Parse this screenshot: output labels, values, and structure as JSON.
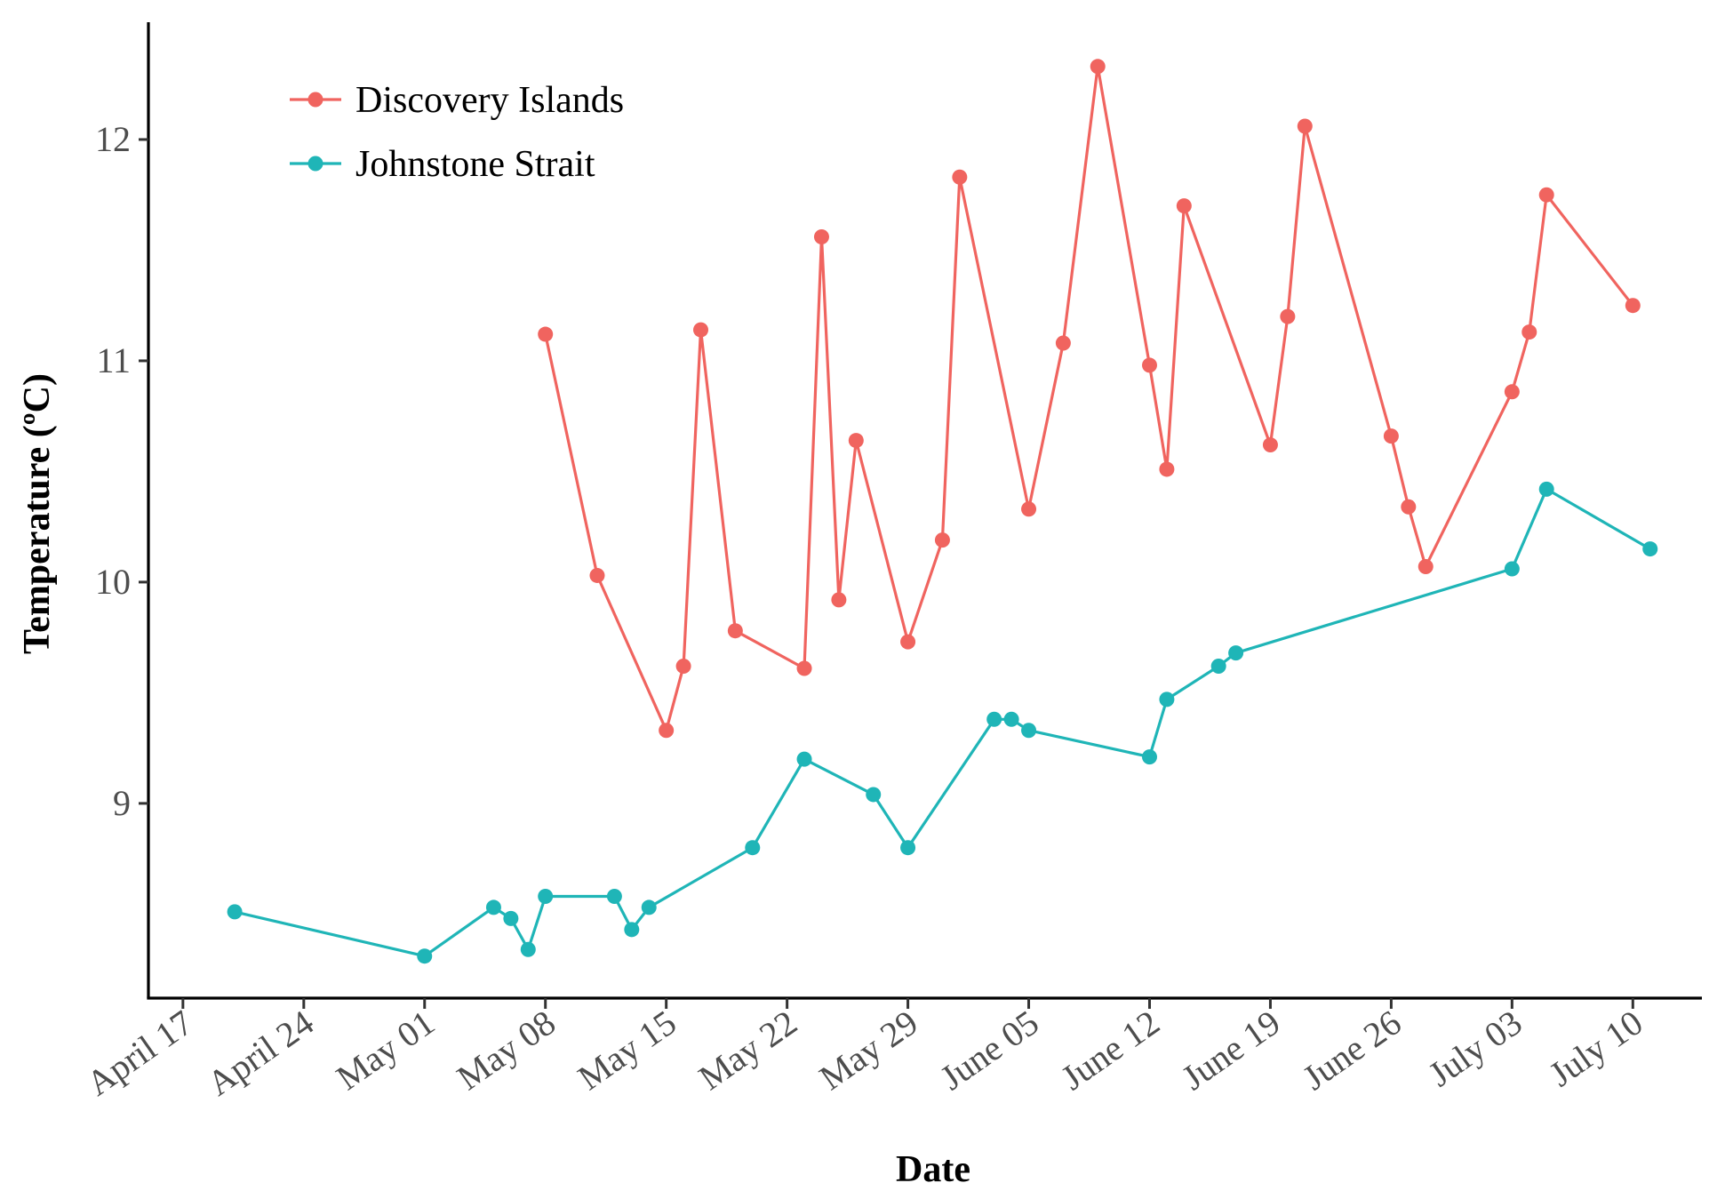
{
  "chart_data": {
    "type": "line",
    "title": "",
    "xlabel": "Date",
    "ylabel": "Temperature (ºC)",
    "x_type": "date",
    "xlim": [
      "2020-04-15",
      "2020-07-14"
    ],
    "ylim": [
      8.12,
      12.53
    ],
    "grid": false,
    "legend_position": "top-left",
    "x_ticks": [
      {
        "date": "2020-04-17",
        "label": "April 17"
      },
      {
        "date": "2020-04-24",
        "label": "April 24"
      },
      {
        "date": "2020-05-01",
        "label": "May 01"
      },
      {
        "date": "2020-05-08",
        "label": "May 08"
      },
      {
        "date": "2020-05-15",
        "label": "May 15"
      },
      {
        "date": "2020-05-22",
        "label": "May 22"
      },
      {
        "date": "2020-05-29",
        "label": "May 29"
      },
      {
        "date": "2020-06-05",
        "label": "June 05"
      },
      {
        "date": "2020-06-12",
        "label": "June 12"
      },
      {
        "date": "2020-06-19",
        "label": "June 19"
      },
      {
        "date": "2020-06-26",
        "label": "June 26"
      },
      {
        "date": "2020-07-03",
        "label": "July 03"
      },
      {
        "date": "2020-07-10",
        "label": "July 10"
      }
    ],
    "y_ticks": [
      {
        "value": 9,
        "label": "9"
      },
      {
        "value": 10,
        "label": "10"
      },
      {
        "value": 11,
        "label": "11"
      },
      {
        "value": 12,
        "label": "12"
      }
    ],
    "series": [
      {
        "name": "Discovery Islands",
        "color": "#F0645F",
        "points": [
          {
            "x": "2020-05-08",
            "y": 11.12
          },
          {
            "x": "2020-05-11",
            "y": 10.03
          },
          {
            "x": "2020-05-15",
            "y": 9.33
          },
          {
            "x": "2020-05-16",
            "y": 9.62
          },
          {
            "x": "2020-05-17",
            "y": 11.14
          },
          {
            "x": "2020-05-19",
            "y": 9.78
          },
          {
            "x": "2020-05-23",
            "y": 9.61
          },
          {
            "x": "2020-05-24",
            "y": 11.56
          },
          {
            "x": "2020-05-25",
            "y": 9.92
          },
          {
            "x": "2020-05-26",
            "y": 10.64
          },
          {
            "x": "2020-05-29",
            "y": 9.73
          },
          {
            "x": "2020-05-31",
            "y": 10.19
          },
          {
            "x": "2020-06-01",
            "y": 11.83
          },
          {
            "x": "2020-06-05",
            "y": 10.33
          },
          {
            "x": "2020-06-07",
            "y": 11.08
          },
          {
            "x": "2020-06-09",
            "y": 12.33
          },
          {
            "x": "2020-06-12",
            "y": 10.98
          },
          {
            "x": "2020-06-13",
            "y": 10.51
          },
          {
            "x": "2020-06-14",
            "y": 11.7
          },
          {
            "x": "2020-06-19",
            "y": 10.62
          },
          {
            "x": "2020-06-20",
            "y": 11.2
          },
          {
            "x": "2020-06-21",
            "y": 12.06
          },
          {
            "x": "2020-06-26",
            "y": 10.66
          },
          {
            "x": "2020-06-27",
            "y": 10.34
          },
          {
            "x": "2020-06-28",
            "y": 10.07
          },
          {
            "x": "2020-07-03",
            "y": 10.86
          },
          {
            "x": "2020-07-04",
            "y": 11.13
          },
          {
            "x": "2020-07-05",
            "y": 11.75
          },
          {
            "x": "2020-07-10",
            "y": 11.25
          }
        ]
      },
      {
        "name": "Johnstone Strait",
        "color": "#1FB5B7",
        "points": [
          {
            "x": "2020-04-20",
            "y": 8.51
          },
          {
            "x": "2020-05-01",
            "y": 8.31
          },
          {
            "x": "2020-05-05",
            "y": 8.53
          },
          {
            "x": "2020-05-06",
            "y": 8.48
          },
          {
            "x": "2020-05-07",
            "y": 8.34
          },
          {
            "x": "2020-05-08",
            "y": 8.58
          },
          {
            "x": "2020-05-12",
            "y": 8.58
          },
          {
            "x": "2020-05-13",
            "y": 8.43
          },
          {
            "x": "2020-05-14",
            "y": 8.53
          },
          {
            "x": "2020-05-20",
            "y": 8.8
          },
          {
            "x": "2020-05-23",
            "y": 9.2
          },
          {
            "x": "2020-05-27",
            "y": 9.04
          },
          {
            "x": "2020-05-29",
            "y": 8.8
          },
          {
            "x": "2020-06-03",
            "y": 9.38
          },
          {
            "x": "2020-06-04",
            "y": 9.38
          },
          {
            "x": "2020-06-05",
            "y": 9.33
          },
          {
            "x": "2020-06-12",
            "y": 9.21
          },
          {
            "x": "2020-06-13",
            "y": 9.47
          },
          {
            "x": "2020-06-16",
            "y": 9.62
          },
          {
            "x": "2020-06-17",
            "y": 9.68
          },
          {
            "x": "2020-07-03",
            "y": 10.06
          },
          {
            "x": "2020-07-05",
            "y": 10.42
          },
          {
            "x": "2020-07-11",
            "y": 10.15
          }
        ]
      }
    ]
  }
}
